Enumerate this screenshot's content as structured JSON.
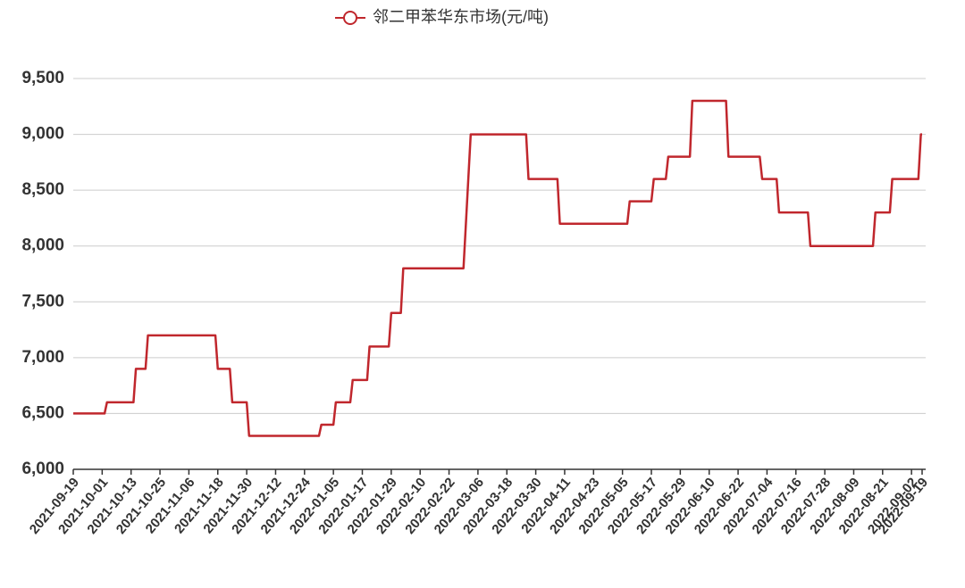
{
  "chart_data": {
    "type": "line",
    "series": [
      {
        "name": "邻二甲苯华东市场(元/吨)",
        "color": "#c0272d",
        "values": [
          6500,
          6500,
          6600,
          6600,
          6900,
          6900,
          7200,
          7200,
          6900,
          6900,
          6600,
          6600,
          6300,
          6300,
          6400,
          6400,
          6600,
          6600,
          6800,
          6800,
          7100,
          7100,
          7400,
          7400,
          7800,
          7800,
          9000,
          9000,
          8600,
          8600,
          8200,
          8200,
          8400,
          8400,
          8600,
          8600,
          8800,
          8800,
          9300,
          9300,
          8800,
          8800,
          8600,
          8600,
          8300,
          8300,
          8000,
          8000,
          8300,
          8300,
          8600,
          8600,
          9000,
          9000
        ]
      }
    ],
    "x": [
      "2021-09-19",
      "2021-10-02",
      "2021-10-03",
      "2021-10-14",
      "2021-10-15",
      "2021-10-19",
      "2021-10-20",
      "2021-11-17",
      "2021-11-18",
      "2021-11-23",
      "2021-11-24",
      "2021-11-30",
      "2021-12-01",
      "2021-12-30",
      "2021-12-31",
      "2022-01-05",
      "2022-01-06",
      "2022-01-12",
      "2022-01-13",
      "2022-01-19",
      "2022-01-20",
      "2022-01-28",
      "2022-01-29",
      "2022-02-02",
      "2022-02-03",
      "2022-02-28",
      "2022-03-03",
      "2022-03-26",
      "2022-03-27",
      "2022-04-08",
      "2022-04-09",
      "2022-05-07",
      "2022-05-08",
      "2022-05-17",
      "2022-05-18",
      "2022-05-23",
      "2022-05-24",
      "2022-06-02",
      "2022-06-03",
      "2022-06-17",
      "2022-06-18",
      "2022-07-01",
      "2022-07-02",
      "2022-07-08",
      "2022-07-09",
      "2022-07-21",
      "2022-07-22",
      "2022-08-17",
      "2022-08-18",
      "2022-08-24",
      "2022-08-25",
      "2022-09-13",
      "2022-09-17",
      "2022-09-19"
    ],
    "xticks": [
      "2021-09-19",
      "2021-10-01",
      "2021-10-13",
      "2021-10-25",
      "2021-11-06",
      "2021-11-18",
      "2021-11-30",
      "2021-12-12",
      "2021-12-24",
      "2022-01-05",
      "2022-01-17",
      "2022-01-29",
      "2022-02-10",
      "2022-02-22",
      "2022-03-06",
      "2022-03-18",
      "2022-03-30",
      "2022-04-11",
      "2022-04-23",
      "2022-05-05",
      "2022-05-17",
      "2022-05-29",
      "2022-06-10",
      "2022-06-22",
      "2022-07-04",
      "2022-07-16",
      "2022-07-28",
      "2022-08-09",
      "2022-08-21",
      "2022-09-02",
      "2022-09-19"
    ],
    "ylim": [
      6000,
      9500
    ],
    "yticks": [
      {
        "value": 6000,
        "label": "6,000"
      },
      {
        "value": 6500,
        "label": "6,500"
      },
      {
        "value": 7000,
        "label": "7,000"
      },
      {
        "value": 7500,
        "label": "7,500"
      },
      {
        "value": 8000,
        "label": "8,000"
      },
      {
        "value": 8500,
        "label": "8,500"
      },
      {
        "value": 9000,
        "label": "9,000"
      },
      {
        "value": 9500,
        "label": "9,500"
      }
    ],
    "grid": true,
    "legend": "top"
  }
}
